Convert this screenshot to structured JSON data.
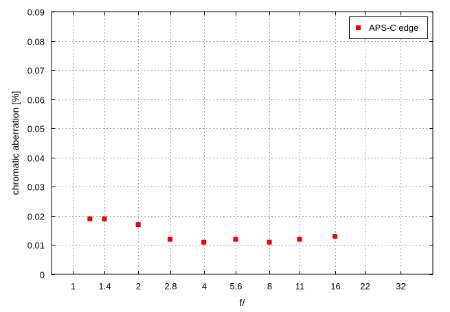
{
  "chart_data": {
    "type": "scatter",
    "title": "",
    "xlabel": "f/",
    "ylabel": "chromatic aberration [%]",
    "x_scale": "log",
    "x_ticks": [
      1,
      1.4,
      2,
      2.8,
      4,
      5.6,
      8,
      11,
      16,
      22,
      32
    ],
    "x_tick_labels": [
      "1",
      "1.4",
      "2",
      "2.8",
      "4",
      "5.6",
      "8",
      "11",
      "16",
      "22",
      "32"
    ],
    "xlim": [
      0.8,
      45
    ],
    "ylim": [
      0,
      0.09
    ],
    "y_ticks": [
      0,
      0.01,
      0.02,
      0.03,
      0.04,
      0.05,
      0.06,
      0.07,
      0.08,
      0.09
    ],
    "y_tick_labels": [
      "0",
      "0.01",
      "0.02",
      "0.03",
      "0.04",
      "0.05",
      "0.06",
      "0.07",
      "0.08",
      "0.09"
    ],
    "grid": true,
    "legend_position": "top-right",
    "series": [
      {
        "name": "APS-C edge",
        "color": "#ee0000",
        "marker": "square",
        "points": [
          {
            "x": 1.2,
            "y": 0.019
          },
          {
            "x": 1.4,
            "y": 0.019
          },
          {
            "x": 2,
            "y": 0.017
          },
          {
            "x": 2.8,
            "y": 0.012
          },
          {
            "x": 4,
            "y": 0.011
          },
          {
            "x": 5.6,
            "y": 0.012
          },
          {
            "x": 8,
            "y": 0.011
          },
          {
            "x": 11,
            "y": 0.012
          },
          {
            "x": 16,
            "y": 0.013
          }
        ]
      }
    ]
  }
}
